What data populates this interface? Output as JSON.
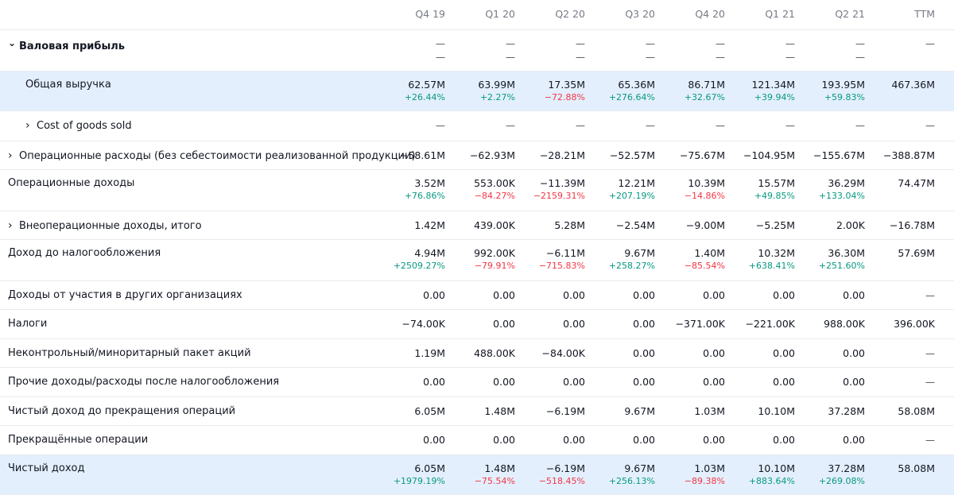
{
  "periods": [
    "Q4 19",
    "Q1 20",
    "Q2 20",
    "Q3 20",
    "Q4 20",
    "Q1 21",
    "Q2 21",
    "TTM"
  ],
  "colors": {
    "positive": "#089981",
    "negative": "#f23645",
    "highlight": "#e3effd"
  },
  "rows": [
    {
      "label": "Валовая прибыль",
      "bold": true,
      "chevron": "down",
      "indent": 0,
      "highlight": false,
      "double_dash": true,
      "values": [
        "—",
        "—",
        "—",
        "—",
        "—",
        "—",
        "—",
        "—"
      ],
      "changes": [
        "—",
        "—",
        "—",
        "—",
        "—",
        "—",
        "—",
        ""
      ]
    },
    {
      "label": "Общая выручка",
      "bold": false,
      "chevron": "",
      "indent": 1,
      "highlight": true,
      "values": [
        "62.57M",
        "63.99M",
        "17.35M",
        "65.36M",
        "86.71M",
        "121.34M",
        "193.95M",
        "467.36M"
      ],
      "changes": [
        "+26.44%",
        "+2.27%",
        "−72.88%",
        "+276.64%",
        "+32.67%",
        "+39.94%",
        "+59.83%",
        ""
      ]
    },
    {
      "label": "Cost of goods sold",
      "bold": false,
      "chevron": "right",
      "indent": 1,
      "highlight": false,
      "values": [
        "—",
        "—",
        "—",
        "—",
        "—",
        "—",
        "—",
        "—"
      ],
      "changes": []
    },
    {
      "label": "Операционные расходы (без себестоимости реализованной продукции)",
      "bold": false,
      "chevron": "right",
      "indent": 0,
      "highlight": false,
      "values": [
        "−58.61M",
        "−62.93M",
        "−28.21M",
        "−52.57M",
        "−75.67M",
        "−104.95M",
        "−155.67M",
        "−388.87M"
      ],
      "changes": []
    },
    {
      "label": "Операционные доходы",
      "bold": false,
      "chevron": "",
      "indent": 0,
      "highlight": false,
      "values": [
        "3.52M",
        "553.00K",
        "−11.39M",
        "12.21M",
        "10.39M",
        "15.57M",
        "36.29M",
        "74.47M"
      ],
      "changes": [
        "+76.86%",
        "−84.27%",
        "−2159.31%",
        "+207.19%",
        "−14.86%",
        "+49.85%",
        "+133.04%",
        ""
      ]
    },
    {
      "label": "Внеоперационные доходы, итого",
      "bold": false,
      "chevron": "right",
      "indent": 0,
      "highlight": false,
      "values": [
        "1.42M",
        "439.00K",
        "5.28M",
        "−2.54M",
        "−9.00M",
        "−5.25M",
        "2.00K",
        "−16.78M"
      ],
      "changes": []
    },
    {
      "label": "Доход до налогообложения",
      "bold": false,
      "chevron": "",
      "indent": 0,
      "highlight": false,
      "values": [
        "4.94M",
        "992.00K",
        "−6.11M",
        "9.67M",
        "1.40M",
        "10.32M",
        "36.30M",
        "57.69M"
      ],
      "changes": [
        "+2509.27%",
        "−79.91%",
        "−715.83%",
        "+258.27%",
        "−85.54%",
        "+638.41%",
        "+251.60%",
        ""
      ]
    },
    {
      "label": "Доходы от участия в других организациях",
      "bold": false,
      "chevron": "",
      "indent": 0,
      "highlight": false,
      "values": [
        "0.00",
        "0.00",
        "0.00",
        "0.00",
        "0.00",
        "0.00",
        "0.00",
        "—"
      ],
      "changes": []
    },
    {
      "label": "Налоги",
      "bold": false,
      "chevron": "",
      "indent": 0,
      "highlight": false,
      "values": [
        "−74.00K",
        "0.00",
        "0.00",
        "0.00",
        "−371.00K",
        "−221.00K",
        "988.00K",
        "396.00K"
      ],
      "changes": []
    },
    {
      "label": "Неконтрольный/миноритарный пакет акций",
      "bold": false,
      "chevron": "",
      "indent": 0,
      "highlight": false,
      "values": [
        "1.19M",
        "488.00K",
        "−84.00K",
        "0.00",
        "0.00",
        "0.00",
        "0.00",
        "—"
      ],
      "changes": []
    },
    {
      "label": "Прочие доходы/расходы после налогообложения",
      "bold": false,
      "chevron": "",
      "indent": 0,
      "highlight": false,
      "values": [
        "0.00",
        "0.00",
        "0.00",
        "0.00",
        "0.00",
        "0.00",
        "0.00",
        "—"
      ],
      "changes": []
    },
    {
      "label": "Чистый доход до прекращения операций",
      "bold": false,
      "chevron": "",
      "indent": 0,
      "highlight": false,
      "values": [
        "6.05M",
        "1.48M",
        "−6.19M",
        "9.67M",
        "1.03M",
        "10.10M",
        "37.28M",
        "58.08M"
      ],
      "changes": []
    },
    {
      "label": "Прекращённые операции",
      "bold": false,
      "chevron": "",
      "indent": 0,
      "highlight": false,
      "values": [
        "0.00",
        "0.00",
        "0.00",
        "0.00",
        "0.00",
        "0.00",
        "0.00",
        "—"
      ],
      "changes": []
    },
    {
      "label": "Чистый доход",
      "bold": false,
      "chevron": "",
      "indent": 0,
      "highlight": true,
      "values": [
        "6.05M",
        "1.48M",
        "−6.19M",
        "9.67M",
        "1.03M",
        "10.10M",
        "37.28M",
        "58.08M"
      ],
      "changes": [
        "+1979.19%",
        "−75.54%",
        "−518.45%",
        "+256.13%",
        "−89.38%",
        "+883.64%",
        "+269.08%",
        ""
      ]
    }
  ]
}
